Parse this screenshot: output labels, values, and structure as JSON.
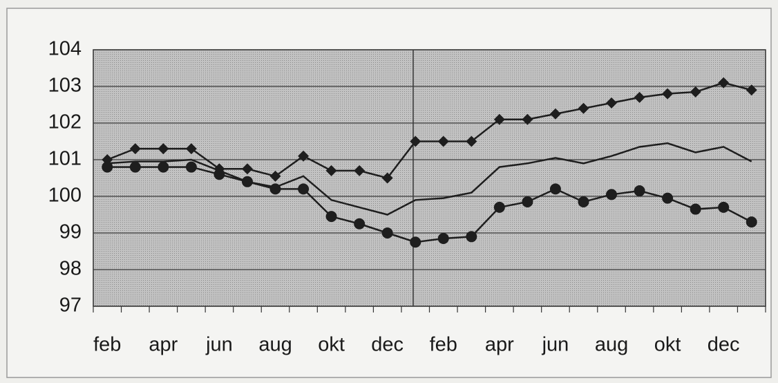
{
  "chart_data": {
    "type": "line",
    "categories": [
      "feb",
      null,
      "apr",
      null,
      "jun",
      null,
      "aug",
      null,
      "okt",
      null,
      "dec",
      null,
      "feb",
      null,
      "apr",
      null,
      "jun",
      null,
      "aug",
      null,
      "okt",
      null,
      "dec",
      null
    ],
    "series": [
      {
        "color": "#1e1e1e",
        "marker": "diamond",
        "values": [
          101.0,
          101.3,
          101.3,
          101.3,
          100.75,
          100.75,
          100.55,
          101.1,
          100.7,
          100.7,
          100.5,
          101.5,
          101.5,
          101.5,
          102.1,
          102.1,
          102.25,
          102.4,
          102.55,
          102.7,
          102.8,
          102.85,
          103.1,
          102.9
        ]
      },
      {
        "color": "#1e1e1e",
        "marker": "none",
        "values": [
          100.9,
          100.95,
          100.95,
          101.0,
          100.7,
          100.4,
          100.25,
          100.55,
          99.9,
          99.7,
          99.5,
          99.9,
          99.95,
          100.1,
          100.8,
          100.9,
          101.05,
          100.9,
          101.1,
          101.35,
          101.45,
          101.2,
          101.35,
          100.95
        ]
      },
      {
        "color": "#1e1e1e",
        "marker": "circle",
        "values": [
          100.8,
          100.8,
          100.8,
          100.8,
          100.6,
          100.4,
          100.2,
          100.2,
          99.45,
          99.25,
          99.0,
          98.75,
          98.85,
          98.9,
          99.7,
          99.85,
          100.2,
          99.85,
          100.05,
          100.15,
          99.95,
          99.65,
          99.7,
          99.3
        ]
      }
    ],
    "ylim": [
      97,
      104
    ],
    "yticks": [
      97,
      98,
      99,
      100,
      101,
      102,
      103,
      104
    ],
    "grid": true
  }
}
